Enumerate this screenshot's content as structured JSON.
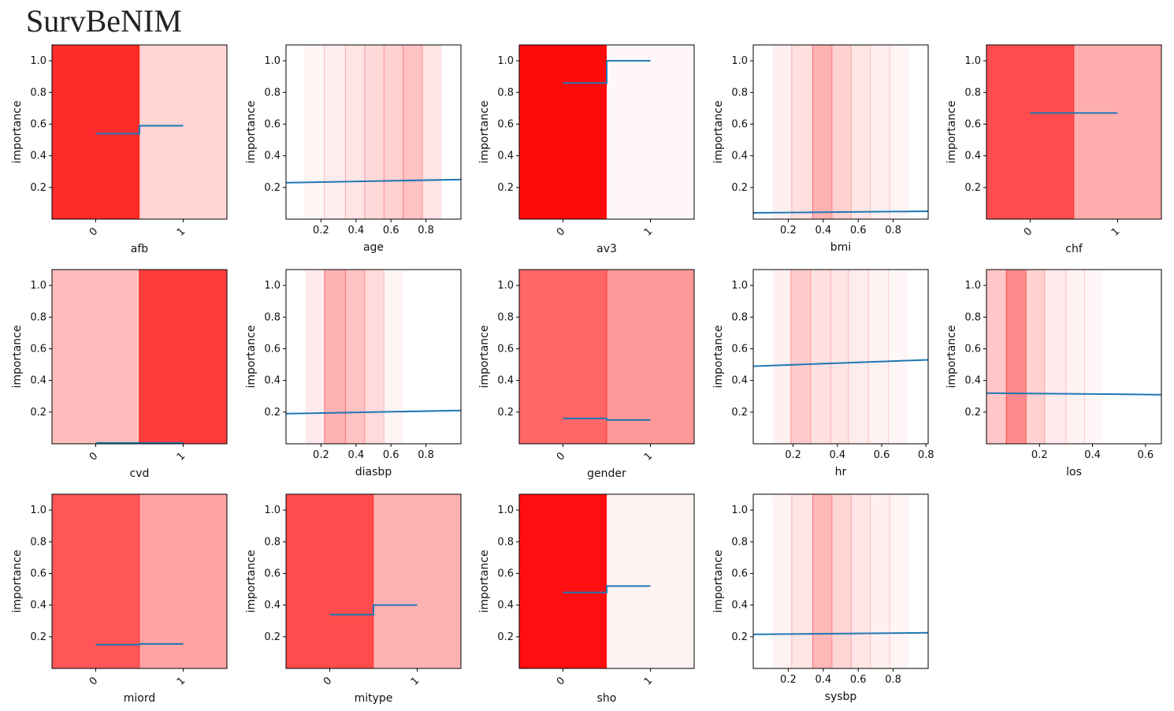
{
  "title": "SurvBeNIM",
  "colors": {
    "band": "#ff0000",
    "line": "#1f77b4",
    "axis": "#000000"
  },
  "chart_data": [
    {
      "type": "step",
      "feature": "afb",
      "xlabel": "afb",
      "ylabel": "importance",
      "categorical": true,
      "xlim": [
        -0.5,
        1.5
      ],
      "ylim": [
        0,
        1.1
      ],
      "xticks": [
        "0",
        "1"
      ],
      "yticks": [
        "0.2",
        "0.4",
        "0.6",
        "0.8",
        "1.0"
      ],
      "bands": [
        {
          "x0": -0.5,
          "x1": 0.5,
          "alpha": 0.83
        },
        {
          "x0": 0.5,
          "x1": 1.5,
          "alpha": 0.16
        }
      ],
      "line": [
        [
          0,
          0.54
        ],
        [
          0.5,
          0.54
        ],
        [
          0.5,
          0.59
        ],
        [
          1,
          0.59
        ]
      ]
    },
    {
      "type": "line",
      "feature": "age",
      "xlabel": "age",
      "ylabel": "importance",
      "categorical": false,
      "xlim": [
        0,
        1.0
      ],
      "ylim": [
        0,
        1.1
      ],
      "xticks": [
        "0.2",
        "0.4",
        "0.6",
        "0.8"
      ],
      "yticks": [
        "0.2",
        "0.4",
        "0.6",
        "0.8",
        "1.0"
      ],
      "bands": [
        {
          "x0": 0.1,
          "x1": 0.22,
          "alpha": 0.04
        },
        {
          "x0": 0.22,
          "x1": 0.34,
          "alpha": 0.07
        },
        {
          "x0": 0.34,
          "x1": 0.45,
          "alpha": 0.1
        },
        {
          "x0": 0.45,
          "x1": 0.56,
          "alpha": 0.15
        },
        {
          "x0": 0.56,
          "x1": 0.67,
          "alpha": 0.18
        },
        {
          "x0": 0.67,
          "x1": 0.78,
          "alpha": 0.24
        },
        {
          "x0": 0.78,
          "x1": 0.89,
          "alpha": 0.1
        }
      ],
      "line": [
        [
          0,
          0.23
        ],
        [
          1.0,
          0.25
        ]
      ]
    },
    {
      "type": "step",
      "feature": "av3",
      "xlabel": "av3",
      "ylabel": "importance",
      "categorical": true,
      "xlim": [
        -0.5,
        1.5
      ],
      "ylim": [
        0,
        1.1
      ],
      "xticks": [
        "0",
        "1"
      ],
      "yticks": [
        "0.2",
        "0.4",
        "0.6",
        "0.8",
        "1.0"
      ],
      "bands": [
        {
          "x0": -0.5,
          "x1": 0.5,
          "alpha": 0.96
        },
        {
          "x0": 0.5,
          "x1": 1.5,
          "alpha": 0.03
        }
      ],
      "line": [
        [
          0,
          0.86
        ],
        [
          0.5,
          0.86
        ],
        [
          0.5,
          1.0
        ],
        [
          1,
          1.0
        ]
      ]
    },
    {
      "type": "line",
      "feature": "bmi",
      "xlabel": "bmi",
      "ylabel": "importance",
      "categorical": false,
      "xlim": [
        0,
        1.0
      ],
      "ylim": [
        0,
        1.1
      ],
      "xticks": [
        "0.2",
        "0.4",
        "0.6",
        "0.8"
      ],
      "yticks": [
        "0.2",
        "0.4",
        "0.6",
        "0.8",
        "1.0"
      ],
      "bands": [
        {
          "x0": 0.11,
          "x1": 0.22,
          "alpha": 0.06
        },
        {
          "x0": 0.22,
          "x1": 0.34,
          "alpha": 0.12
        },
        {
          "x0": 0.34,
          "x1": 0.45,
          "alpha": 0.3
        },
        {
          "x0": 0.45,
          "x1": 0.56,
          "alpha": 0.18
        },
        {
          "x0": 0.56,
          "x1": 0.67,
          "alpha": 0.1
        },
        {
          "x0": 0.67,
          "x1": 0.78,
          "alpha": 0.06
        },
        {
          "x0": 0.78,
          "x1": 0.89,
          "alpha": 0.04
        }
      ],
      "line": [
        [
          0,
          0.04
        ],
        [
          1.0,
          0.05
        ]
      ]
    },
    {
      "type": "step",
      "feature": "chf",
      "xlabel": "chf",
      "ylabel": "importance",
      "categorical": true,
      "xlim": [
        -0.5,
        1.5
      ],
      "ylim": [
        0,
        1.1
      ],
      "xticks": [
        "0",
        "1"
      ],
      "yticks": [
        "0.2",
        "0.4",
        "0.6",
        "0.8",
        "1.0"
      ],
      "bands": [
        {
          "x0": -0.5,
          "x1": 0.5,
          "alpha": 0.7
        },
        {
          "x0": 0.5,
          "x1": 1.5,
          "alpha": 0.32
        }
      ],
      "line": [
        [
          0,
          0.67
        ],
        [
          0.5,
          0.67
        ],
        [
          0.5,
          0.67
        ],
        [
          1,
          0.67
        ]
      ]
    },
    {
      "type": "step",
      "feature": "cvd",
      "xlabel": "cvd",
      "ylabel": "importance",
      "categorical": true,
      "xlim": [
        -0.5,
        1.5
      ],
      "ylim": [
        0,
        1.1
      ],
      "xticks": [
        "0",
        "1"
      ],
      "yticks": [
        "0.2",
        "0.4",
        "0.6",
        "0.8",
        "1.0"
      ],
      "bands": [
        {
          "x0": -0.5,
          "x1": 0.5,
          "alpha": 0.26
        },
        {
          "x0": 0.5,
          "x1": 1.5,
          "alpha": 0.76
        }
      ],
      "line": [
        [
          0,
          0.005
        ],
        [
          0.5,
          0.005
        ],
        [
          0.5,
          0.005
        ],
        [
          1,
          0.005
        ]
      ]
    },
    {
      "type": "line",
      "feature": "diasbp",
      "xlabel": "diasbp",
      "ylabel": "importance",
      "categorical": false,
      "xlim": [
        0,
        1.0
      ],
      "ylim": [
        0,
        1.1
      ],
      "xticks": [
        "0.2",
        "0.4",
        "0.6",
        "0.8"
      ],
      "yticks": [
        "0.2",
        "0.4",
        "0.6",
        "0.8",
        "1.0"
      ],
      "bands": [
        {
          "x0": 0.11,
          "x1": 0.22,
          "alpha": 0.08
        },
        {
          "x0": 0.22,
          "x1": 0.34,
          "alpha": 0.3
        },
        {
          "x0": 0.34,
          "x1": 0.45,
          "alpha": 0.24
        },
        {
          "x0": 0.45,
          "x1": 0.56,
          "alpha": 0.14
        },
        {
          "x0": 0.56,
          "x1": 0.67,
          "alpha": 0.04
        }
      ],
      "line": [
        [
          0,
          0.19
        ],
        [
          1.0,
          0.21
        ]
      ]
    },
    {
      "type": "step",
      "feature": "gender",
      "xlabel": "gender",
      "ylabel": "importance",
      "categorical": true,
      "xlim": [
        -0.5,
        1.5
      ],
      "ylim": [
        0,
        1.1
      ],
      "xticks": [
        "0",
        "1"
      ],
      "yticks": [
        "0.2",
        "0.4",
        "0.6",
        "0.8",
        "1.0"
      ],
      "bands": [
        {
          "x0": -0.5,
          "x1": 0.5,
          "alpha": 0.6
        },
        {
          "x0": 0.5,
          "x1": 1.5,
          "alpha": 0.4
        }
      ],
      "line": [
        [
          0,
          0.16
        ],
        [
          0.5,
          0.16
        ],
        [
          0.5,
          0.15
        ],
        [
          1,
          0.15
        ]
      ]
    },
    {
      "type": "line",
      "feature": "hr",
      "xlabel": "hr",
      "ylabel": "importance",
      "categorical": false,
      "xlim": [
        0.02,
        0.81
      ],
      "ylim": [
        0,
        1.1
      ],
      "xticks": [
        "0.2",
        "0.4",
        "0.6",
        "0.8"
      ],
      "yticks": [
        "0.2",
        "0.4",
        "0.6",
        "0.8",
        "1.0"
      ],
      "bands": [
        {
          "x0": 0.11,
          "x1": 0.19,
          "alpha": 0.06
        },
        {
          "x0": 0.19,
          "x1": 0.28,
          "alpha": 0.2
        },
        {
          "x0": 0.28,
          "x1": 0.37,
          "alpha": 0.12
        },
        {
          "x0": 0.37,
          "x1": 0.45,
          "alpha": 0.1
        },
        {
          "x0": 0.45,
          "x1": 0.54,
          "alpha": 0.07
        },
        {
          "x0": 0.54,
          "x1": 0.63,
          "alpha": 0.05
        },
        {
          "x0": 0.63,
          "x1": 0.72,
          "alpha": 0.03
        }
      ],
      "line": [
        [
          0.02,
          0.49
        ],
        [
          0.81,
          0.53
        ]
      ]
    },
    {
      "type": "line",
      "feature": "los",
      "xlabel": "los",
      "ylabel": "importance",
      "categorical": false,
      "xlim": [
        0,
        0.66
      ],
      "ylim": [
        0,
        1.1
      ],
      "xticks": [
        "0.2",
        "0.4",
        "0.6"
      ],
      "yticks": [
        "0.2",
        "0.4",
        "0.6",
        "0.8",
        "1.0"
      ],
      "bands": [
        {
          "x0": 0,
          "x1": 0.075,
          "alpha": 0.22
        },
        {
          "x0": 0.075,
          "x1": 0.15,
          "alpha": 0.45
        },
        {
          "x0": 0.15,
          "x1": 0.22,
          "alpha": 0.18
        },
        {
          "x0": 0.22,
          "x1": 0.3,
          "alpha": 0.08
        },
        {
          "x0": 0.3,
          "x1": 0.37,
          "alpha": 0.05
        },
        {
          "x0": 0.37,
          "x1": 0.44,
          "alpha": 0.03
        }
      ],
      "line": [
        [
          0,
          0.32
        ],
        [
          0.36,
          0.315
        ],
        [
          0.66,
          0.31
        ]
      ]
    },
    {
      "type": "step",
      "feature": "miord",
      "xlabel": "miord",
      "ylabel": "importance",
      "categorical": true,
      "xlim": [
        -0.5,
        1.5
      ],
      "ylim": [
        0,
        1.1
      ],
      "xticks": [
        "0",
        "1"
      ],
      "yticks": [
        "0.2",
        "0.4",
        "0.6",
        "0.8",
        "1.0"
      ],
      "bands": [
        {
          "x0": -0.5,
          "x1": 0.5,
          "alpha": 0.66
        },
        {
          "x0": 0.5,
          "x1": 1.5,
          "alpha": 0.36
        }
      ],
      "line": [
        [
          0,
          0.15
        ],
        [
          0.5,
          0.15
        ],
        [
          0.5,
          0.155
        ],
        [
          1,
          0.155
        ]
      ]
    },
    {
      "type": "step",
      "feature": "mitype",
      "xlabel": "mitype",
      "ylabel": "importance",
      "categorical": true,
      "xlim": [
        -0.5,
        1.5
      ],
      "ylim": [
        0,
        1.1
      ],
      "xticks": [
        "0",
        "1"
      ],
      "yticks": [
        "0.2",
        "0.4",
        "0.6",
        "0.8",
        "1.0"
      ],
      "bands": [
        {
          "x0": -0.5,
          "x1": 0.5,
          "alpha": 0.7
        },
        {
          "x0": 0.5,
          "x1": 1.5,
          "alpha": 0.3
        }
      ],
      "line": [
        [
          0,
          0.34
        ],
        [
          0.5,
          0.34
        ],
        [
          0.5,
          0.4
        ],
        [
          1,
          0.4
        ]
      ]
    },
    {
      "type": "step",
      "feature": "sho",
      "xlabel": "sho",
      "ylabel": "importance",
      "categorical": true,
      "xlim": [
        -0.5,
        1.5
      ],
      "ylim": [
        0,
        1.1
      ],
      "xticks": [
        "0",
        "1"
      ],
      "yticks": [
        "0.2",
        "0.4",
        "0.6",
        "0.8",
        "1.0"
      ],
      "bands": [
        {
          "x0": -0.5,
          "x1": 0.5,
          "alpha": 0.94
        },
        {
          "x0": 0.5,
          "x1": 1.5,
          "alpha": 0.05
        }
      ],
      "line": [
        [
          0,
          0.48
        ],
        [
          0.5,
          0.48
        ],
        [
          0.5,
          0.52
        ],
        [
          1,
          0.52
        ]
      ]
    },
    {
      "type": "line",
      "feature": "sysbp",
      "xlabel": "sysbp",
      "ylabel": "importance",
      "categorical": false,
      "xlim": [
        0,
        1.0
      ],
      "ylim": [
        0,
        1.1
      ],
      "xticks": [
        "0.2",
        "0.4",
        "0.6",
        "0.8"
      ],
      "yticks": [
        "0.2",
        "0.4",
        "0.6",
        "0.8",
        "1.0"
      ],
      "bands": [
        {
          "x0": 0.11,
          "x1": 0.22,
          "alpha": 0.05
        },
        {
          "x0": 0.22,
          "x1": 0.34,
          "alpha": 0.1
        },
        {
          "x0": 0.34,
          "x1": 0.45,
          "alpha": 0.28
        },
        {
          "x0": 0.45,
          "x1": 0.56,
          "alpha": 0.16
        },
        {
          "x0": 0.56,
          "x1": 0.67,
          "alpha": 0.1
        },
        {
          "x0": 0.67,
          "x1": 0.78,
          "alpha": 0.06
        },
        {
          "x0": 0.78,
          "x1": 0.89,
          "alpha": 0.04
        }
      ],
      "line": [
        [
          0,
          0.215
        ],
        [
          1.0,
          0.225
        ]
      ]
    }
  ]
}
